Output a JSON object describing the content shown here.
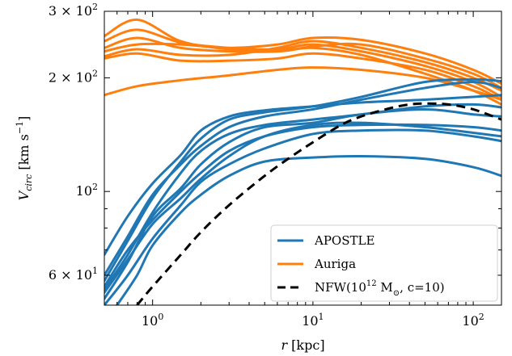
{
  "chart_data": {
    "type": "line",
    "title": "",
    "xlabel": "r [kpc]",
    "ylabel": "V_circ [km s^-1]",
    "xscale": "log",
    "yscale": "log",
    "xlim": [
      0.5,
      150
    ],
    "ylim": [
      50,
      300
    ],
    "x_ticks": [
      {
        "value": 1,
        "label": "10^0"
      },
      {
        "value": 10,
        "label": "10^1"
      },
      {
        "value": 100,
        "label": "10^2"
      }
    ],
    "y_ticks": [
      {
        "value": 60,
        "label": "6 × 10^1"
      },
      {
        "value": 100,
        "label": "10^2"
      },
      {
        "value": 200,
        "label": "2 × 10^2"
      },
      {
        "value": 300,
        "label": "3 × 10^2"
      }
    ],
    "grid": false,
    "legend": {
      "placement": "bottom-right",
      "entries": [
        {
          "label": "APOSTLE",
          "color": "#1f77b4",
          "style": "solid"
        },
        {
          "label": "Auriga",
          "color": "#ff7f0e",
          "style": "solid"
        },
        {
          "label": "NFW(10^12 M_sun, c=10)",
          "color": "#000000",
          "style": "dashed"
        }
      ]
    },
    "colors": {
      "apostle": "#1f77b4",
      "auriga": "#ff7f0e",
      "nfw": "#000000"
    },
    "series": [
      {
        "group": "auriga",
        "x": [
          0.5,
          0.8,
          1.5,
          3,
          6,
          10,
          20,
          50,
          100,
          150
        ],
        "y": [
          258,
          285,
          250,
          238,
          235,
          240,
          230,
          205,
          185,
          170
        ]
      },
      {
        "group": "auriga",
        "x": [
          0.5,
          0.8,
          1.5,
          3,
          6,
          10,
          20,
          50,
          100,
          150
        ],
        "y": [
          250,
          268,
          248,
          240,
          238,
          245,
          235,
          215,
          195,
          178
        ]
      },
      {
        "group": "auriga",
        "x": [
          0.5,
          0.8,
          1.5,
          3,
          6,
          10,
          20,
          50,
          100,
          150
        ],
        "y": [
          240,
          255,
          240,
          235,
          235,
          242,
          245,
          225,
          205,
          188
        ]
      },
      {
        "group": "auriga",
        "x": [
          0.5,
          0.8,
          1.5,
          3,
          6,
          10,
          20,
          50,
          100,
          150
        ],
        "y": [
          235,
          245,
          245,
          240,
          245,
          255,
          252,
          232,
          210,
          193
        ]
      },
      {
        "group": "auriga",
        "x": [
          0.5,
          0.8,
          1.5,
          3,
          6,
          10,
          20,
          50,
          100,
          150
        ],
        "y": [
          228,
          238,
          230,
          230,
          240,
          250,
          240,
          220,
          200,
          185
        ]
      },
      {
        "group": "auriga",
        "x": [
          0.5,
          0.8,
          1.5,
          3,
          6,
          10,
          20,
          50,
          100,
          150
        ],
        "y": [
          225,
          232,
          222,
          222,
          225,
          232,
          225,
          210,
          190,
          175
        ]
      },
      {
        "group": "auriga",
        "x": [
          0.5,
          0.8,
          1.5,
          3,
          6,
          10,
          20,
          50,
          100,
          150
        ],
        "y": [
          180,
          190,
          197,
          203,
          210,
          213,
          210,
          200,
          185,
          175
        ]
      },
      {
        "group": "apostle",
        "x": [
          0.5,
          0.7,
          1,
          1.5,
          2,
          3,
          5,
          10,
          20,
          50,
          100,
          150
        ],
        "y": [
          68,
          86,
          105,
          125,
          145,
          158,
          164,
          168,
          172,
          175,
          178,
          180
        ]
      },
      {
        "group": "apostle",
        "x": [
          0.5,
          0.7,
          1,
          1.5,
          2,
          3,
          5,
          10,
          20,
          50,
          100,
          150
        ],
        "y": [
          58,
          74,
          96,
          120,
          138,
          155,
          162,
          168,
          178,
          195,
          198,
          196
        ]
      },
      {
        "group": "apostle",
        "x": [
          0.5,
          0.7,
          1,
          1.5,
          2,
          3,
          5,
          10,
          20,
          50,
          100,
          150
        ],
        "y": [
          60,
          76,
          98,
          118,
          132,
          148,
          158,
          165,
          175,
          188,
          195,
          188
        ]
      },
      {
        "group": "apostle",
        "x": [
          0.5,
          0.7,
          1,
          1.5,
          2,
          3,
          5,
          10,
          20,
          50,
          100,
          150
        ],
        "y": [
          55,
          68,
          88,
          112,
          128,
          142,
          150,
          155,
          160,
          168,
          170,
          167
        ]
      },
      {
        "group": "apostle",
        "x": [
          0.5,
          0.7,
          1,
          1.5,
          2,
          3,
          5,
          10,
          20,
          50,
          100,
          150
        ],
        "y": [
          52,
          65,
          86,
          102,
          118,
          135,
          148,
          152,
          160,
          165,
          160,
          158
        ]
      },
      {
        "group": "apostle",
        "x": [
          0.5,
          0.7,
          1,
          1.5,
          2,
          3,
          5,
          10,
          20,
          50,
          100,
          150
        ],
        "y": [
          56,
          70,
          84,
          100,
          112,
          128,
          140,
          148,
          150,
          150,
          148,
          145
        ]
      },
      {
        "group": "apostle",
        "x": [
          0.5,
          0.7,
          1,
          1.5,
          2,
          3,
          5,
          10,
          20,
          50,
          100,
          150
        ],
        "y": [
          54,
          66,
          82,
          96,
          108,
          124,
          140,
          150,
          152,
          148,
          143,
          140
        ]
      },
      {
        "group": "apostle",
        "x": [
          0.5,
          0.7,
          1,
          1.5,
          2,
          3,
          5,
          10,
          20,
          50,
          100,
          150
        ],
        "y": [
          50,
          60,
          75,
          92,
          106,
          118,
          130,
          142,
          145,
          145,
          140,
          136
        ]
      },
      {
        "group": "apostle",
        "x": [
          0.6,
          0.8,
          1,
          1.5,
          2,
          3,
          5,
          10,
          20,
          50,
          100,
          150
        ],
        "y": [
          50,
          60,
          72,
          88,
          98,
          110,
          120,
          123,
          124,
          122,
          116,
          110
        ]
      }
    ],
    "nfw": {
      "x": [
        0.8,
        1,
        1.5,
        2,
        3,
        5,
        7,
        10,
        15,
        20,
        30,
        40,
        50,
        70,
        100,
        150
      ],
      "y": [
        50,
        56,
        68,
        78,
        92,
        110,
        122,
        135,
        150,
        158,
        166,
        170,
        171,
        170,
        165,
        155
      ]
    }
  }
}
